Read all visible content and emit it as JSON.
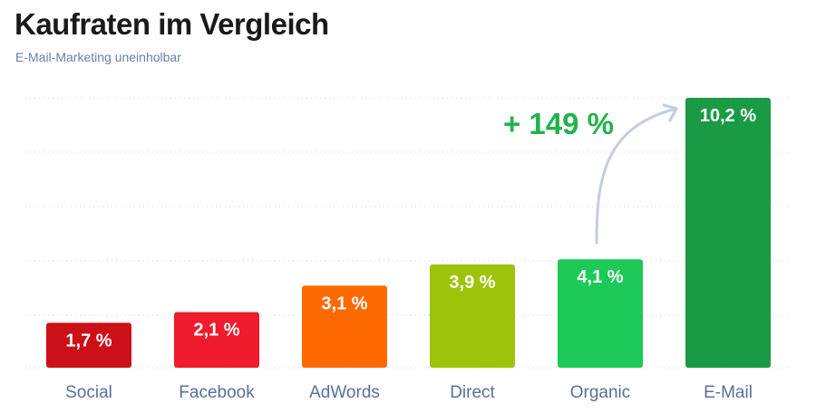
{
  "header": {
    "title": "Kaufraten im Vergleich",
    "subtitle": "E-Mail-Marketing uneinholbar"
  },
  "chart_data": {
    "type": "bar",
    "title": "Kaufraten im Vergleich",
    "subtitle": "E-Mail-Marketing uneinholbar",
    "categories": [
      "Social",
      "Facebook",
      "AdWords",
      "Direct",
      "Organic",
      "E-Mail"
    ],
    "values": [
      1.7,
      2.1,
      3.1,
      3.9,
      4.1,
      10.2
    ],
    "value_labels": [
      "1,7 %",
      "2,1 %",
      "3,1 %",
      "3,9 %",
      "4,1 %",
      "10,2 %"
    ],
    "colors": [
      "#cc1018",
      "#ee1c2c",
      "#ff6a00",
      "#9dc40a",
      "#1dc957",
      "#1a9a44"
    ],
    "ylim": [
      0,
      10.2
    ],
    "grid": true,
    "annotation": {
      "text": "+ 149 %",
      "from_category": "Organic",
      "to_category": "E-Mail",
      "color": "#22b24c"
    }
  }
}
